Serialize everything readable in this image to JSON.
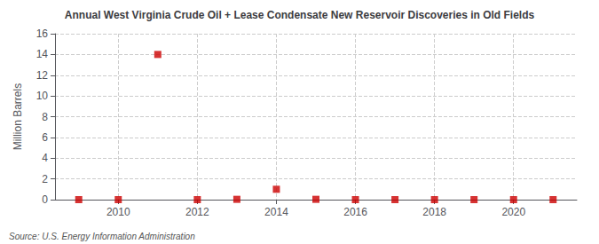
{
  "chart_data": {
    "type": "scatter",
    "title": "Annual West Virginia Crude Oil + Lease Condensate New Reservoir Discoveries in Old Fields",
    "ylabel": "Million Barrels",
    "annotations": [
      "Source: U.S. Energy Information Administration"
    ],
    "x": [
      2009,
      2010,
      2011,
      2012,
      2013,
      2014,
      2015,
      2016,
      2017,
      2018,
      2019,
      2020,
      2021
    ],
    "values": [
      0.0,
      0.0,
      14.0,
      0.0,
      0.03,
      1.0,
      0.03,
      0.0,
      0.0,
      0.0,
      0.0,
      0.0,
      0.0
    ],
    "color": "#cc0000",
    "marker": "square",
    "xlim": [
      2008.4,
      2021.6
    ],
    "ylim": [
      0,
      16
    ],
    "xticks": [
      2010,
      2012,
      2014,
      2016,
      2018,
      2020
    ],
    "yticks": [
      0,
      2,
      4,
      6,
      8,
      10,
      12,
      14,
      16
    ],
    "grid": true
  }
}
